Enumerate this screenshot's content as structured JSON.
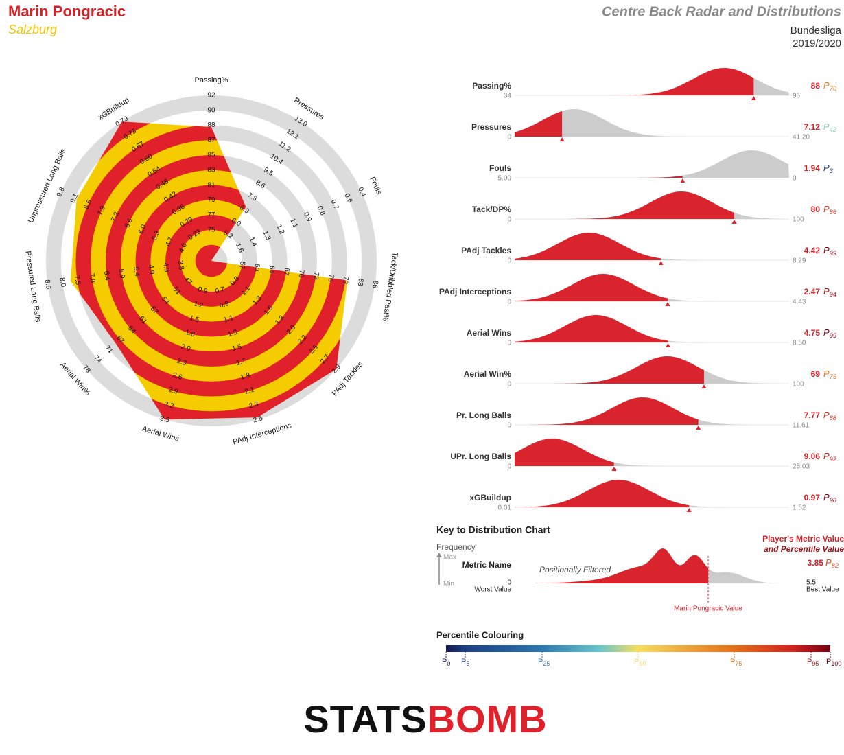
{
  "header": {
    "player": "Marin Pongracic",
    "team": "Salzburg",
    "title": "Centre Back Radar and Distributions",
    "league": "Bundesliga",
    "season": "2019/2020"
  },
  "chart_data": [
    {
      "type": "radar",
      "axes": [
        {
          "name": "Passing%",
          "ticks": [
            75,
            77,
            79,
            81,
            83,
            85,
            87,
            88,
            90,
            92
          ]
        },
        {
          "name": "Pressures",
          "ticks": [
            5.2,
            {
              "value": 6,
              "label": "6.0"
            },
            6.9,
            7.8,
            8.6,
            9.5,
            10.4,
            11.2,
            12.1,
            {
              "value": 13,
              "label": "13.0"
            }
          ]
        },
        {
          "name": "Fouls",
          "ticks": [
            1.6,
            1.4,
            1.3,
            1.2,
            1.1,
            0.9,
            0.8,
            0.7,
            0.6,
            0.4
          ]
        },
        {
          "name": "Tack/Dribbled Past%",
          "ticks": [
            57,
            60,
            64,
            67,
            70,
            73,
            76,
            79,
            83,
            86
          ]
        },
        {
          "name": "PAdj Tackles",
          "ticks": [
            0.8,
            1.1,
            1.3,
            1.5,
            1.8,
            {
              "value": 2,
              "label": "2.0"
            },
            2.2,
            2.5,
            2.7,
            2.9
          ]
        },
        {
          "name": "PAdj Interceptions",
          "ticks": [
            0.7,
            0.9,
            1.1,
            1.3,
            1.5,
            1.7,
            1.9,
            2.1,
            2.3,
            2.5
          ]
        },
        {
          "name": "Aerial Wins",
          "ticks": [
            0.9,
            1.2,
            1.5,
            1.8,
            {
              "value": 2,
              "label": "2.0"
            },
            2.3,
            2.6,
            2.9,
            3.2,
            3.5
          ]
        },
        {
          "name": "Aerial Win%",
          "ticks": [
            47,
            51,
            54,
            57,
            61,
            64,
            67,
            71,
            74,
            78
          ]
        },
        {
          "name": "Pressured Long Balls",
          "ticks": [
            3.8,
            4.3,
            4.9,
            5.4,
            5.9,
            6.4,
            {
              "value": 7,
              "label": "7.0"
            },
            7.5,
            {
              "value": 8,
              "label": "8.0"
            },
            8.6
          ]
        },
        {
          "name": "Unpressured Long Balls",
          "ticks": [
            {
              "value": 4,
              "label": "4.0"
            },
            4.7,
            5.3,
            {
              "value": 6,
              "label": "6.0"
            },
            6.6,
            7.2,
            7.9,
            8.5,
            9.1,
            9.8
          ]
        },
        {
          "name": "xGBuildup",
          "ticks": [
            0.23,
            0.29,
            0.36,
            0.42,
            0.48,
            0.54,
            {
              "value": 0.6,
              "label": "0.60"
            },
            0.67,
            0.73,
            0.79
          ]
        }
      ],
      "colors": [
        "#f5cc00",
        "#e0202a"
      ]
    },
    {
      "type": "distribution",
      "percentile_symbol": "P",
      "rows": [
        {
          "name": "Passing%",
          "min": 34,
          "max": 96,
          "value": 88,
          "percentile": 70
        },
        {
          "name": "Pressures",
          "min": 0,
          "max": {
            "value": 41.2,
            "label": "41.20"
          },
          "value": 7.12,
          "percentile": 42
        },
        {
          "name": "Fouls",
          "min": {
            "value": 5,
            "label": "5.00"
          },
          "max": 0,
          "value": 1.94,
          "percentile": 3
        },
        {
          "name": "Tack/DP%",
          "min": 0,
          "max": 100,
          "value": 80,
          "percentile": 86
        },
        {
          "name": "PAdj Tackles",
          "min": 0,
          "max": 8.29,
          "value": 4.42,
          "percentile": 99
        },
        {
          "name": "PAdj Interceptions",
          "min": 0,
          "max": 4.43,
          "value": 2.47,
          "percentile": 94
        },
        {
          "name": "Aerial Wins",
          "min": 0,
          "max": {
            "value": 8.5,
            "label": "8.50"
          },
          "value": 4.75,
          "percentile": 99
        },
        {
          "name": "Aerial Win%",
          "min": 0,
          "max": 100,
          "value": 69,
          "percentile": 75
        },
        {
          "name": "Pr. Long Balls",
          "min": 0,
          "max": 11.61,
          "value": 7.77,
          "percentile": 88
        },
        {
          "name": "UPr. Long Balls",
          "min": 0,
          "max": 25.03,
          "value": 9.06,
          "percentile": 92
        },
        {
          "name": "xGBuildup",
          "min": 0.01,
          "max": 1.52,
          "value": 0.97,
          "percentile": 98
        }
      ]
    }
  ],
  "key": {
    "title": "Key to Distribution Chart",
    "frequency": "Frequency",
    "max": "Max",
    "min": "Min",
    "metric": "Metric Name",
    "filter": "Positionally Filtered",
    "worst": 0,
    "worst_label": "Worst Value",
    "best": 5.5,
    "best_label": "Best Value",
    "player_value_label": "Marin Pongracic Value",
    "legend_line1": "Player's Metric Value",
    "legend_line2": "and Percentile Value",
    "value": 3.85,
    "percentile": 82
  },
  "percentile_colouring": {
    "title": "Percentile Colouring",
    "ticks": [
      0,
      5,
      25,
      50,
      75,
      95,
      100
    ]
  },
  "logo": {
    "part1": "STATS",
    "part2": "BOMB"
  }
}
